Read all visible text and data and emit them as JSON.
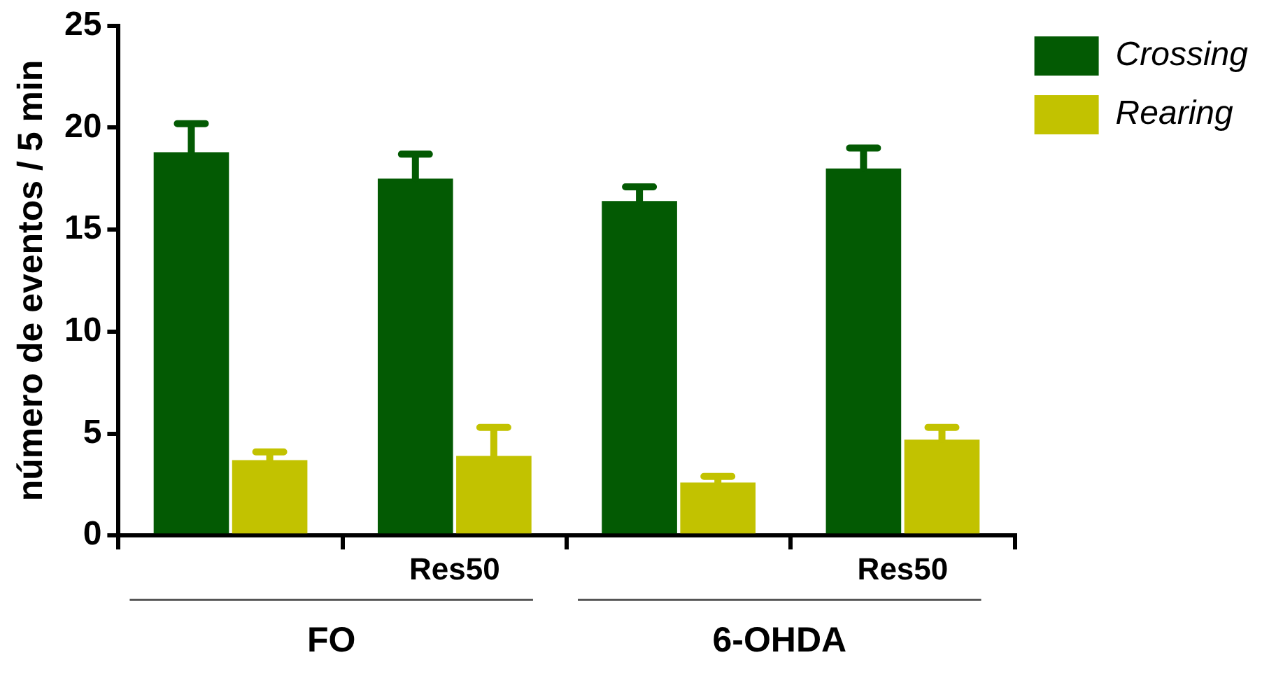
{
  "chart_data": {
    "type": "bar",
    "ylabel": "número de eventos / 5 min",
    "categories": [
      null,
      "Res50",
      null,
      "Res50"
    ],
    "series": [
      {
        "name": "Crossing",
        "color": "#035a03",
        "values": [
          18.8,
          17.5,
          16.4,
          18.0
        ],
        "errors": [
          [
            18.8,
            20.2
          ],
          [
            17.5,
            18.7
          ],
          [
            16.4,
            17.1
          ],
          [
            18.0,
            19.0
          ]
        ]
      },
      {
        "name": "Rearing",
        "color": "#c2c200",
        "values": [
          3.7,
          3.9,
          2.6,
          4.7
        ],
        "errors": [
          [
            3.7,
            4.1
          ],
          [
            3.9,
            5.3
          ],
          [
            2.6,
            2.9
          ],
          [
            4.7,
            5.3
          ]
        ]
      }
    ],
    "ylim": [
      0,
      25
    ],
    "yticks": [
      0,
      5,
      10,
      15,
      20,
      25
    ],
    "grid": false,
    "legend": "top right",
    "annotations": [
      "FO",
      "6-OHDA"
    ]
  }
}
